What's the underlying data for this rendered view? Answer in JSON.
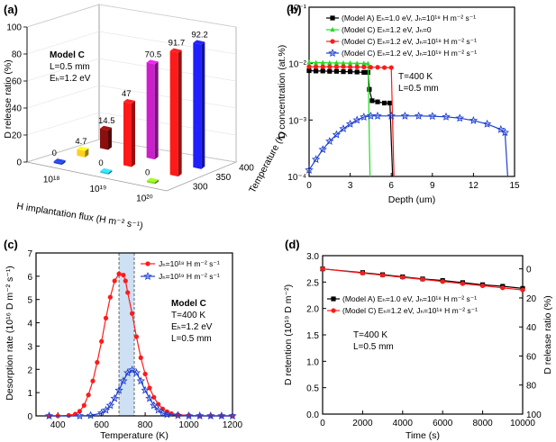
{
  "chart_data": [
    {
      "type": "bar3d",
      "panel_label": "(a)",
      "ylabel": "D release ratio (%)",
      "xlabel": "H implantation flux (H m⁻² s⁻¹)",
      "zlabel": "Temperature (K)",
      "ylim": [
        0,
        100
      ],
      "yticks": [
        "0",
        "20",
        "40",
        "60",
        "80",
        "100"
      ],
      "xticks": [
        "10¹⁸",
        "10¹⁹",
        "10²⁰"
      ],
      "zticks": [
        "300",
        "350",
        "400"
      ],
      "annotation": [
        "Model C",
        "L=0.5 mm",
        "Eₕ=1.2 eV"
      ],
      "bars": [
        {
          "flux": "1e18",
          "temperature": 300,
          "value": 0,
          "label": "0",
          "color": "#1f3fd0"
        },
        {
          "flux": "1e18",
          "temperature": 350,
          "value": 4.7,
          "label": "4.7",
          "color": "#ffd21a"
        },
        {
          "flux": "1e18",
          "temperature": 400,
          "value": 14.5,
          "label": "14.5",
          "color": "#8b0f0f"
        },
        {
          "flux": "1e19",
          "temperature": 300,
          "value": 0,
          "label": "0",
          "color": "#2cc4d8"
        },
        {
          "flux": "1e19",
          "temperature": 350,
          "value": 47,
          "label": "47",
          "color": "#ff1a1a"
        },
        {
          "flux": "1e19",
          "temperature": 400,
          "value": 70.5,
          "label": "70.5",
          "color": "#cc1fcc"
        },
        {
          "flux": "1e20",
          "temperature": 300,
          "value": 0,
          "label": "0",
          "color": "#88d820"
        },
        {
          "flux": "1e20",
          "temperature": 350,
          "value": 91.7,
          "label": "91.7",
          "color": "#ff1a1a"
        },
        {
          "flux": "1e20",
          "temperature": 400,
          "value": 92.2,
          "label": "92.2",
          "color": "#1f1fff"
        }
      ]
    },
    {
      "type": "line",
      "panel_label": "(b)",
      "xlabel": "Depth (um)",
      "ylabel": "D concentration (at.%)",
      "yscale": "log",
      "xlim": [
        0,
        15
      ],
      "ylim": [
        0.0001,
        0.1
      ],
      "xticks": [
        0,
        3,
        6,
        9,
        12,
        15
      ],
      "yticks": [
        "10⁻⁴",
        "10⁻³",
        "10⁻²",
        "10⁻¹"
      ],
      "annotation": [
        "T=400 K",
        "L=0.5 mm"
      ],
      "series": [
        {
          "name": "(Model A) Eₕ=1.0 eV, Jₕ=10¹⁸ H m⁻² s⁻¹",
          "color": "#000000",
          "marker": "square",
          "x": [
            0,
            0.5,
            1,
            1.5,
            2,
            2.5,
            3,
            3.5,
            4,
            4.3,
            4.4,
            4.6,
            5,
            5.5,
            5.9,
            6.1
          ],
          "y": [
            0.0075,
            0.0074,
            0.0074,
            0.0073,
            0.0073,
            0.0072,
            0.0072,
            0.0071,
            0.007,
            0.007,
            0.0035,
            0.0022,
            0.0021,
            0.002,
            0.002,
            0.0001
          ]
        },
        {
          "name": "(Model C) Eₕ=1.2 eV, Jₕ=0",
          "color": "#22dd22",
          "marker": "triangle",
          "x": [
            0,
            0.5,
            1,
            1.5,
            2,
            2.5,
            3,
            3.5,
            4,
            4.3,
            4.45
          ],
          "y": [
            0.0105,
            0.0104,
            0.0104,
            0.0103,
            0.0103,
            0.0102,
            0.0102,
            0.0101,
            0.0101,
            0.01,
            0.0001
          ]
        },
        {
          "name": "(Model C) Eₕ=1.2 eV, Jₕ=10¹⁸ H m⁻² s⁻¹",
          "color": "#ff1a1a",
          "marker": "circle",
          "x": [
            0,
            0.5,
            1,
            1.5,
            2,
            2.5,
            3,
            3.5,
            4,
            4.5,
            5,
            5.5,
            6,
            6.2
          ],
          "y": [
            0.0088,
            0.0088,
            0.0088,
            0.0088,
            0.0088,
            0.0088,
            0.0087,
            0.0087,
            0.0087,
            0.0086,
            0.0086,
            0.0085,
            0.0085,
            0.0001
          ]
        },
        {
          "name": "(Model C) Eₕ=1.2 eV, Jₕ=10¹⁹ H m⁻² s⁻¹",
          "color": "#1f3fd0",
          "marker": "star",
          "x": [
            0,
            0.5,
            1,
            1.5,
            2,
            2.5,
            3,
            3.5,
            4,
            4.5,
            5,
            6,
            7,
            8,
            9,
            10,
            11,
            12,
            13,
            14,
            14.3,
            14.5
          ],
          "y": [
            0.00013,
            0.0002,
            0.0003,
            0.00042,
            0.00055,
            0.0007,
            0.00085,
            0.001,
            0.00113,
            0.00118,
            0.00118,
            0.00118,
            0.00118,
            0.00118,
            0.00117,
            0.00114,
            0.00108,
            0.00098,
            0.00085,
            0.00068,
            0.0006,
            0.0001
          ]
        }
      ]
    },
    {
      "type": "line",
      "panel_label": "(c)",
      "xlabel": "Temperature (K)",
      "ylabel": "Desorption rate (10¹⁶ D m⁻² s⁻¹)",
      "xlim": [
        300,
        1200
      ],
      "ylim": [
        0,
        7
      ],
      "xticks": [
        400,
        600,
        800,
        1000,
        1200
      ],
      "yticks": [
        0,
        1,
        2,
        3,
        4,
        5,
        6,
        7
      ],
      "annotation": [
        "Model C",
        "T=400 K",
        "Eₕ=1.2 eV",
        "L=0.5 mm"
      ],
      "series": [
        {
          "name": "Jₕ=10¹⁸ H m⁻² s⁻¹",
          "color": "#ff1a1a",
          "marker": "circle",
          "x": [
            360,
            400,
            450,
            480,
            500,
            520,
            540,
            560,
            580,
            600,
            620,
            640,
            660,
            680,
            700,
            710,
            720,
            740,
            760,
            780,
            800,
            820,
            840,
            860,
            880,
            900,
            920,
            950,
            1000,
            1050,
            1100,
            1150,
            1200
          ],
          "y": [
            0,
            0,
            0.02,
            0.08,
            0.2,
            0.45,
            0.9,
            1.5,
            2.3,
            3.2,
            4.2,
            5.1,
            5.8,
            6.1,
            6.05,
            5.8,
            5.3,
            4.4,
            3.4,
            2.5,
            1.8,
            1.2,
            0.8,
            0.5,
            0.3,
            0.18,
            0.1,
            0.05,
            0.02,
            0,
            0,
            0,
            0
          ]
        },
        {
          "name": "Jₕ=10¹⁹ H m⁻² s⁻¹",
          "color": "#1f3fd0",
          "marker": "star",
          "x": [
            360,
            500,
            550,
            600,
            620,
            640,
            660,
            680,
            700,
            720,
            740,
            760,
            780,
            800,
            820,
            840,
            860,
            880,
            900,
            950,
            1000,
            1050,
            1100,
            1150,
            1200
          ],
          "y": [
            0,
            0,
            0.02,
            0.12,
            0.25,
            0.45,
            0.75,
            1.1,
            1.5,
            1.85,
            1.97,
            1.85,
            1.5,
            1.1,
            0.75,
            0.45,
            0.25,
            0.12,
            0.06,
            0.02,
            0,
            0,
            0,
            0,
            0
          ]
        }
      ],
      "vlines": [
        680,
        750
      ],
      "shaded_band": [
        680,
        750
      ]
    },
    {
      "type": "line",
      "panel_label": "(d)",
      "xlabel": "Time (s)",
      "ylabel": "D retention (10¹⁹ D m⁻²)",
      "ylabel_right": "D release ratio (%)",
      "xlim": [
        0,
        10000
      ],
      "ylim": [
        0,
        3.0
      ],
      "xticks": [
        0,
        2000,
        4000,
        6000,
        8000,
        10000
      ],
      "yticks": [
        "0.0",
        "0.5",
        "1.0",
        "1.5",
        "2.0",
        "2.5",
        "3.0"
      ],
      "yticks_right": [
        0,
        20,
        40,
        60,
        80,
        100
      ],
      "annotation": [
        "T=400 K",
        "L=0.5 mm"
      ],
      "series": [
        {
          "name": "(Model A) Eₕ=1.0 eV, Jₕ=10¹⁸ H m⁻² s⁻¹",
          "color": "#000000",
          "marker": "square",
          "x": [
            0,
            2000,
            3000,
            4000,
            5000,
            6000,
            7000,
            8000,
            9000,
            10000
          ],
          "y": [
            2.75,
            2.68,
            2.64,
            2.6,
            2.56,
            2.53,
            2.49,
            2.45,
            2.42,
            2.38
          ]
        },
        {
          "name": "(Model C) Eₕ=1.2 eV, Jₕ=10¹⁸ H m⁻² s⁻¹",
          "color": "#ff1a1a",
          "marker": "circle",
          "x": [
            0,
            2000,
            3000,
            4000,
            5000,
            6000,
            7000,
            8000,
            9000,
            10000
          ],
          "y": [
            2.75,
            2.67,
            2.63,
            2.59,
            2.55,
            2.51,
            2.47,
            2.43,
            2.39,
            2.35
          ]
        }
      ]
    }
  ]
}
